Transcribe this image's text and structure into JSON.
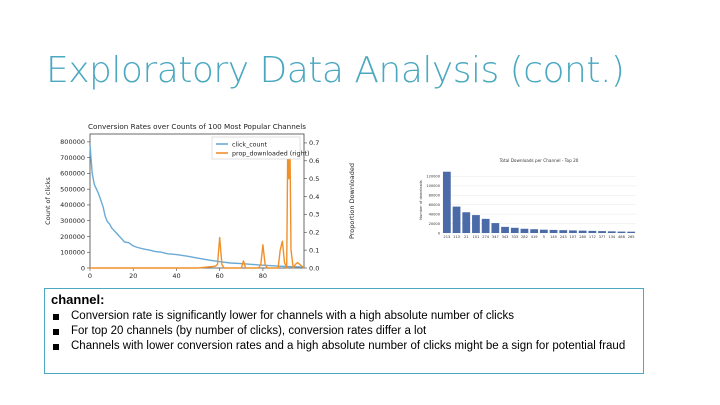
{
  "slide": {
    "title": "Exploratory Data Analysis (cont.)"
  },
  "textbox": {
    "heading": "channel:",
    "bullets": [
      "Conversion rate is significantly lower for channels with a high absolute number of clicks",
      "For top 20 channels (by number of clicks), conversion rates differ a lot",
      "Channels with lower conversion rates and a high absolute number of clicks might be a sign for potential fraud"
    ]
  },
  "colors": {
    "title": "#4aa8c0",
    "click_count": "#6aaad6",
    "prop_downloaded": "#f0902a",
    "bars": "#4a6aa8"
  },
  "chart_data": [
    {
      "type": "line",
      "title": "Conversion Rates over Counts of 100 Most Popular Channels",
      "xlabel": "",
      "ylabel": "Count of clicks",
      "y2label": "Proportion Downloaded",
      "xlim": [
        0,
        99
      ],
      "ylim": [
        0,
        850000
      ],
      "y2lim": [
        0,
        0.75
      ],
      "xticks": [
        "0",
        "20",
        "40",
        "60",
        "80"
      ],
      "yticks": [
        "0",
        "100000",
        "200000",
        "300000",
        "400000",
        "500000",
        "600000",
        "700000",
        "800000"
      ],
      "y2ticks": [
        "0.0",
        "0.1",
        "0.2",
        "0.3",
        "0.4",
        "0.5",
        "0.6",
        "0.7"
      ],
      "legend": "top-right",
      "series": [
        {
          "name": "click_count",
          "axis": "left",
          "x": [
            0,
            1,
            2,
            3,
            4,
            5,
            6,
            7,
            8,
            9,
            10,
            12,
            14,
            16,
            18,
            20,
            22,
            25,
            28,
            30,
            33,
            36,
            40,
            45,
            50,
            55,
            60,
            65,
            70,
            75,
            80,
            85,
            90,
            95,
            99
          ],
          "y": [
            780000,
            600000,
            530000,
            500000,
            470000,
            430000,
            390000,
            330000,
            295000,
            280000,
            255000,
            225000,
            195000,
            165000,
            160000,
            140000,
            130000,
            120000,
            112000,
            105000,
            100000,
            90000,
            85000,
            75000,
            62000,
            50000,
            40000,
            32000,
            28000,
            23000,
            18000,
            14000,
            10000,
            8000,
            6000
          ]
        },
        {
          "name": "prop_downloaded (right)",
          "axis": "right",
          "x": [
            0,
            20,
            50,
            58,
            59,
            60,
            61,
            62,
            70,
            71,
            72,
            78,
            79,
            80,
            81,
            82,
            87,
            88,
            89,
            90,
            91,
            91.5,
            92,
            92.5,
            93,
            94,
            95,
            96,
            99
          ],
          "y": [
            0.0,
            0.0,
            0.0,
            0.01,
            0.02,
            0.17,
            0.02,
            0.0,
            0.0,
            0.04,
            0.0,
            0.0,
            0.02,
            0.13,
            0.02,
            0.0,
            0.0,
            0.1,
            0.15,
            0.03,
            0.0,
            0.72,
            0.5,
            0.72,
            0.1,
            0.0,
            0.02,
            0.03,
            0.0
          ]
        }
      ]
    },
    {
      "type": "bar",
      "title": "Total Downloads per Channel - Top 20",
      "xlabel": "",
      "ylabel": "Number of downloads",
      "ylim": [
        0,
        140000
      ],
      "yticks": [
        "0",
        "20000",
        "40000",
        "60000",
        "80000",
        "100000",
        "120000"
      ],
      "categories": [
        "213",
        "113",
        "21",
        "101",
        "274",
        "347",
        "343",
        "333",
        "282",
        "419",
        "5",
        "145",
        "243",
        "107",
        "280",
        "172",
        "377",
        "134",
        "488",
        "265"
      ],
      "values": [
        130000,
        56000,
        44000,
        38000,
        30000,
        21000,
        13000,
        11000,
        9000,
        8000,
        7000,
        6500,
        6000,
        5500,
        5000,
        4500,
        4000,
        3500,
        3000,
        2800
      ]
    }
  ]
}
